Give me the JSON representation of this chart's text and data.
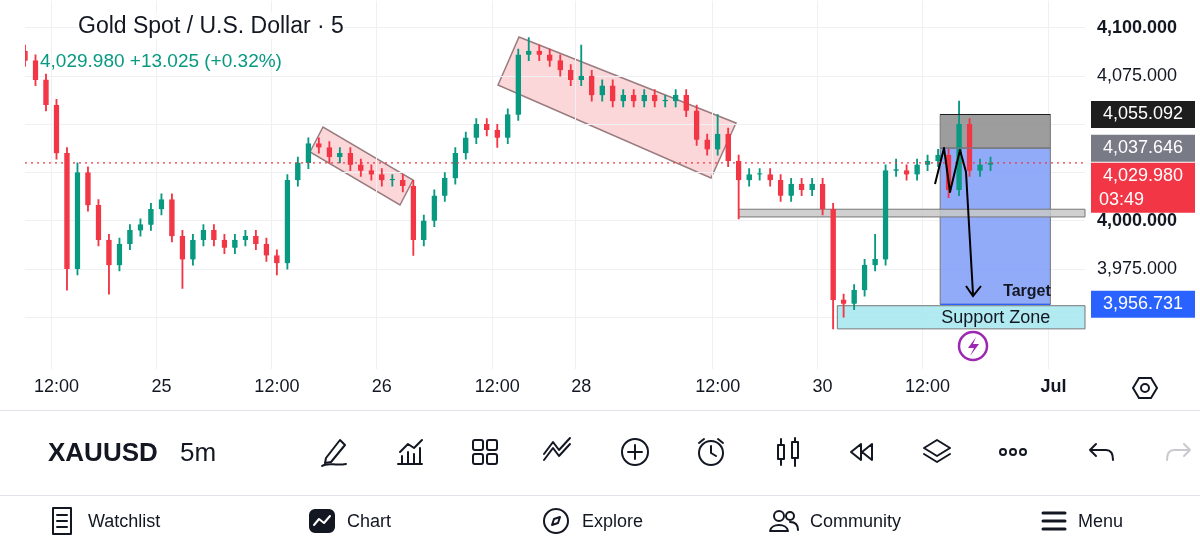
{
  "chart_data": {
    "type": "candlestick",
    "title": "Gold Spot / U.S. Dollar · 5",
    "subtitle": "4,029.980  +13.025 (+0.32%)",
    "categories": [
      null,
      null,
      null,
      "12:00",
      null,
      null,
      null,
      null,
      null,
      null,
      null,
      null,
      null,
      "25",
      null,
      null,
      null,
      null,
      null,
      null,
      null,
      null,
      null,
      null,
      "12:00",
      null,
      null,
      null,
      null,
      null,
      null,
      null,
      null,
      null,
      "26",
      null,
      null,
      null,
      null,
      null,
      null,
      null,
      null,
      null,
      null,
      "12:00",
      null,
      null,
      null,
      null,
      null,
      null,
      null,
      "28",
      null,
      null,
      null,
      null,
      null,
      null,
      null,
      null,
      null,
      null,
      null,
      null,
      "12:00",
      null,
      null,
      null,
      null,
      null,
      null,
      null,
      null,
      null,
      "30",
      null,
      null,
      null,
      null,
      null,
      null,
      null,
      null,
      null,
      "12:00",
      null,
      null,
      null,
      null,
      null,
      null,
      null,
      null,
      null,
      null,
      null,
      "Jul",
      null,
      null,
      null
    ],
    "ohlc": [
      [
        4088,
        4091,
        4080,
        4083
      ],
      [
        4083,
        4086,
        4070,
        4073
      ],
      [
        4073,
        4076,
        4057,
        4060
      ],
      [
        4060,
        4063,
        4032,
        4035
      ],
      [
        4035,
        4038,
        3964,
        3975
      ],
      [
        3975,
        4030,
        3972,
        4025
      ],
      [
        4025,
        4028,
        4005,
        4008
      ],
      [
        4008,
        4011,
        3987,
        3990
      ],
      [
        3990,
        3993,
        3962,
        3977
      ],
      [
        3977,
        3991,
        3974,
        3988
      ],
      [
        3988,
        3998,
        3985,
        3995
      ],
      [
        3995,
        4001,
        3992,
        3998
      ],
      [
        3998,
        4009,
        3995,
        4006
      ],
      [
        4006,
        4014,
        4003,
        4011
      ],
      [
        4011,
        4014,
        3989,
        3992
      ],
      [
        3992,
        3995,
        3965,
        3980
      ],
      [
        3980,
        3993,
        3977,
        3990
      ],
      [
        3990,
        3998,
        3987,
        3995
      ],
      [
        3995,
        3998,
        3987,
        3990
      ],
      [
        3990,
        3993,
        3983,
        3986
      ],
      [
        3986,
        3993,
        3983,
        3990
      ],
      [
        3990,
        3995,
        3987,
        3992
      ],
      [
        3992,
        3995,
        3985,
        3988
      ],
      [
        3988,
        3991,
        3979,
        3982
      ],
      [
        3982,
        3985,
        3972,
        3978
      ],
      [
        3978,
        4024,
        3975,
        4021
      ],
      [
        4021,
        4033,
        4018,
        4030
      ],
      [
        4030,
        4043,
        4027,
        4040
      ],
      [
        4040,
        4043,
        4035,
        4038
      ],
      [
        4038,
        4041,
        4030,
        4033
      ],
      [
        4033,
        4038,
        4030,
        4035
      ],
      [
        4035,
        4038,
        4026,
        4029
      ],
      [
        4029,
        4032,
        4023,
        4026
      ],
      [
        4026,
        4029,
        4021,
        4024
      ],
      [
        4024,
        4027,
        4018,
        4021
      ],
      [
        4021,
        4024,
        4018,
        4021
      ],
      [
        4021,
        4024,
        4015,
        4018
      ],
      [
        4018,
        4021,
        3982,
        3990
      ],
      [
        3990,
        4003,
        3987,
        4000
      ],
      [
        4000,
        4016,
        3997,
        4013
      ],
      [
        4013,
        4025,
        4010,
        4022
      ],
      [
        4022,
        4038,
        4019,
        4035
      ],
      [
        4035,
        4046,
        4032,
        4043
      ],
      [
        4043,
        4053,
        4040,
        4050
      ],
      [
        4050,
        4053,
        4044,
        4047
      ],
      [
        4047,
        4050,
        4038,
        4043
      ],
      [
        4043,
        4058,
        4040,
        4055
      ],
      [
        4055,
        4089,
        4052,
        4086
      ],
      [
        4086,
        4095,
        4083,
        4088
      ],
      [
        4088,
        4091,
        4083,
        4086
      ],
      [
        4086,
        4089,
        4080,
        4083
      ],
      [
        4083,
        4086,
        4075,
        4078
      ],
      [
        4078,
        4081,
        4070,
        4073
      ],
      [
        4073,
        4091,
        4070,
        4075
      ],
      [
        4075,
        4078,
        4062,
        4065
      ],
      [
        4065,
        4073,
        4062,
        4070
      ],
      [
        4070,
        4073,
        4059,
        4062
      ],
      [
        4062,
        4068,
        4059,
        4065
      ],
      [
        4065,
        4068,
        4059,
        4062
      ],
      [
        4062,
        4068,
        4059,
        4065
      ],
      [
        4065,
        4068,
        4059,
        4062
      ],
      [
        4062,
        4065,
        4059,
        4062
      ],
      [
        4062,
        4068,
        4059,
        4065
      ],
      [
        4065,
        4068,
        4054,
        4057
      ],
      [
        4057,
        4060,
        4039,
        4042
      ],
      [
        4042,
        4045,
        4034,
        4037
      ],
      [
        4037,
        4055,
        4034,
        4045
      ],
      [
        4045,
        4048,
        4028,
        4031
      ],
      [
        4031,
        4034,
        4001,
        4021
      ],
      [
        4021,
        4027,
        4018,
        4024
      ],
      [
        4024,
        4027,
        4021,
        4024
      ],
      [
        4024,
        4027,
        4018,
        4021
      ],
      [
        4021,
        4024,
        4010,
        4013
      ],
      [
        4013,
        4022,
        4010,
        4019
      ],
      [
        4019,
        4022,
        4013,
        4016
      ],
      [
        4016,
        4022,
        4013,
        4019
      ],
      [
        4019,
        4022,
        4003,
        4006
      ],
      [
        4006,
        4009,
        3944,
        3959
      ],
      [
        3959,
        3962,
        3950,
        3957
      ],
      [
        3957,
        3967,
        3954,
        3964
      ],
      [
        3964,
        3980,
        3961,
        3977
      ],
      [
        3977,
        3993,
        3974,
        3980
      ],
      [
        3980,
        4029,
        3977,
        4026
      ],
      [
        4026,
        4032,
        4023,
        4026
      ],
      [
        4026,
        4029,
        4021,
        4024
      ],
      [
        4024,
        4032,
        4021,
        4029
      ],
      [
        4029,
        4034,
        4026,
        4031
      ],
      [
        4031,
        4037,
        4028,
        4034
      ],
      [
        4034,
        4037,
        4012,
        4016
      ],
      [
        4016,
        4062,
        4013,
        4050
      ],
      [
        4050,
        4053,
        4023,
        4026
      ],
      [
        4026,
        4032,
        4023,
        4029
      ],
      [
        4029,
        4033,
        4026,
        4030
      ],
      null,
      null,
      null,
      null,
      null,
      null,
      null,
      null,
      null
    ],
    "colors": [
      "#f23645",
      "#f23645",
      "#f23645",
      "#f23645",
      "#f23645",
      "#089981",
      "#f23645",
      "#f23645",
      "#f23645",
      "#089981",
      "#089981",
      "#089981",
      "#089981",
      "#089981",
      "#f23645",
      "#f23645",
      "#089981",
      "#089981",
      "#f23645",
      "#f23645",
      "#089981",
      "#089981",
      "#f23645",
      "#f23645",
      "#f23645",
      "#089981",
      "#089981",
      "#089981",
      "#f23645",
      "#f23645",
      "#089981",
      "#f23645",
      "#f23645",
      "#f23645",
      "#f23645",
      "#089981",
      "#f23645",
      "#f23645",
      "#089981",
      "#089981",
      "#089981",
      "#089981",
      "#089981",
      "#089981",
      "#f23645",
      "#f23645",
      "#089981",
      "#089981",
      "#089981",
      "#f23645",
      "#f23645",
      "#f23645",
      "#f23645",
      "#089981",
      "#f23645",
      "#089981",
      "#f23645",
      "#089981",
      "#f23645",
      "#089981",
      "#f23645",
      "#089981",
      "#089981",
      "#f23645",
      "#f23645",
      "#f23645",
      "#089981",
      "#f23645",
      "#f23645",
      "#089981",
      "#089981",
      "#f23645",
      "#f23645",
      "#089981",
      "#f23645",
      "#089981",
      "#f23645",
      "#f23645",
      "#f23645",
      "#089981",
      "#089981",
      "#089981",
      "#089981",
      "#089981",
      "#f23645",
      "#089981",
      "#089981",
      "#089981",
      "#f23645",
      "#089981",
      "#f23645",
      "#089981",
      "#089981",
      null,
      null,
      null,
      null,
      null,
      null,
      null,
      null,
      null
    ],
    "ylim": [
      3923,
      4114
    ],
    "yticks": [
      {
        "value": 3950,
        "label": null
      },
      {
        "value": 3975,
        "label": "3,975.000"
      },
      {
        "value": 4000,
        "label": "4,000.000"
      },
      {
        "value": 4025,
        "label": null
      },
      {
        "value": 4050,
        "label": null
      },
      {
        "value": 4075,
        "label": "4,075.000"
      },
      {
        "value": 4100,
        "label": "4,100.000"
      }
    ],
    "grid": true,
    "legend": false,
    "ref_lines": [
      {
        "axis": "y",
        "value": 4029.98,
        "label": "4,029.980",
        "color": "#f23645",
        "line_style": "dotted"
      },
      {
        "axis": "y",
        "value": 4055.092,
        "label": "4,055.092",
        "color": "#1e1e1e",
        "line_style": "solid"
      },
      {
        "axis": "y",
        "value": 4037.646,
        "label": "4,037.646",
        "color": "#787b86",
        "line_style": "solid"
      },
      {
        "axis": "y",
        "value": 3956.731,
        "label": "3,956.731",
        "color": "#2962ff",
        "line_style": "solid"
      }
    ],
    "bands": [
      {
        "axis": "y",
        "from": 4037.646,
        "to": 4055.092,
        "color": "#8c8c8c"
      },
      {
        "axis": "y",
        "from": 3956.731,
        "to": 4037.646,
        "color": "#7e9cf8"
      },
      {
        "axis": "y",
        "from": 4002,
        "to": 4006,
        "color": "#c8c8c8"
      },
      {
        "axis": "y",
        "from": 3944,
        "to": 3956,
        "label": "Support Zone",
        "color": "#a5e6ee"
      }
    ],
    "annotations": [
      {
        "text": "Target",
        "y": 3959
      },
      "03:49",
      "XAUUSD",
      "5m",
      "Watchlist",
      "Chart",
      "Explore",
      "Community",
      "Menu"
    ]
  }
}
